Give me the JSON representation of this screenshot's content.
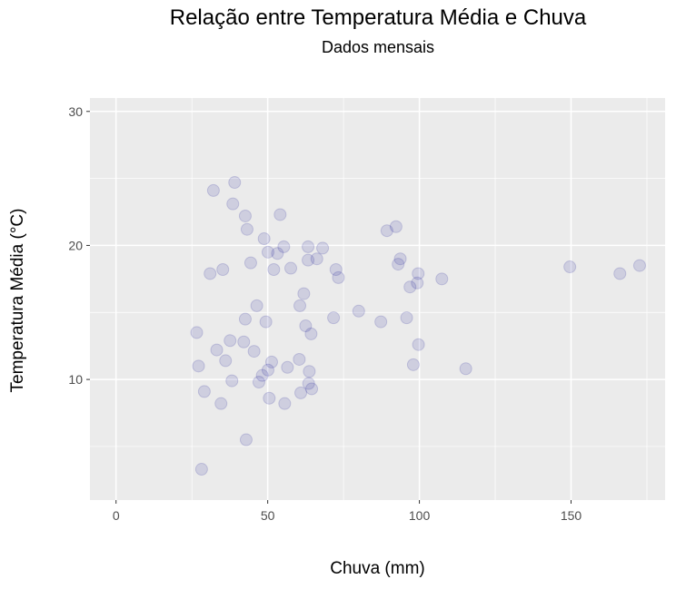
{
  "chart_data": {
    "type": "scatter",
    "title": "Relação entre Temperatura Média e Chuva",
    "subtitle": "Dados mensais",
    "xlabel": "Chuva (mm)",
    "ylabel": "Temperatura Média (°C)",
    "xlim": [
      -8.6,
      181
    ],
    "ylim": [
      1,
      31
    ],
    "x_ticks": [
      0,
      50,
      100,
      150
    ],
    "y_ticks": [
      10,
      20,
      30
    ],
    "grid": true,
    "legend": "none",
    "colors": {
      "point_fill": "#00008b",
      "point_opacity": 0.12,
      "panel_bg": "#ebebeb",
      "grid": "#ffffff"
    },
    "series": [
      {
        "points": [
          [
            149.6,
            18.4
          ],
          [
            166.1,
            17.9
          ],
          [
            172.6,
            18.5
          ],
          [
            115.3,
            10.8
          ],
          [
            107.4,
            17.5
          ],
          [
            99.7,
            12.6
          ],
          [
            99.6,
            17.9
          ],
          [
            99.3,
            17.2
          ],
          [
            98.0,
            11.1
          ],
          [
            96.9,
            16.9
          ],
          [
            95.8,
            14.6
          ],
          [
            93.7,
            19.0
          ],
          [
            93.0,
            18.6
          ],
          [
            92.3,
            21.4
          ],
          [
            89.3,
            21.1
          ],
          [
            87.3,
            14.3
          ],
          [
            80.0,
            15.1
          ],
          [
            73.3,
            17.6
          ],
          [
            72.5,
            18.2
          ],
          [
            71.7,
            14.6
          ],
          [
            68.1,
            19.8
          ],
          [
            66.2,
            19.0
          ],
          [
            64.3,
            13.4
          ],
          [
            63.3,
            18.9
          ],
          [
            63.3,
            19.9
          ],
          [
            63.5,
            9.7
          ],
          [
            64.5,
            9.3
          ],
          [
            63.7,
            10.6
          ],
          [
            62.5,
            14.0
          ],
          [
            61.9,
            16.4
          ],
          [
            60.6,
            15.5
          ],
          [
            60.9,
            9.0
          ],
          [
            60.4,
            11.5
          ],
          [
            57.6,
            18.3
          ],
          [
            56.5,
            10.9
          ],
          [
            55.6,
            8.2
          ],
          [
            55.3,
            19.9
          ],
          [
            54.1,
            22.3
          ],
          [
            53.2,
            19.4
          ],
          [
            52.0,
            18.2
          ],
          [
            51.3,
            11.3
          ],
          [
            50.1,
            19.5
          ],
          [
            50.5,
            8.6
          ],
          [
            50.1,
            10.7
          ],
          [
            49.4,
            14.3
          ],
          [
            48.8,
            20.5
          ],
          [
            48.2,
            10.3
          ],
          [
            47.1,
            9.8
          ],
          [
            46.4,
            15.5
          ],
          [
            45.5,
            12.1
          ],
          [
            44.4,
            18.7
          ],
          [
            43.2,
            21.2
          ],
          [
            42.6,
            22.2
          ],
          [
            42.6,
            14.5
          ],
          [
            42.1,
            12.8
          ],
          [
            42.9,
            5.5
          ],
          [
            39.1,
            24.7
          ],
          [
            38.5,
            23.1
          ],
          [
            38.2,
            9.9
          ],
          [
            37.6,
            12.9
          ],
          [
            36.1,
            11.4
          ],
          [
            35.2,
            18.2
          ],
          [
            34.6,
            8.2
          ],
          [
            33.2,
            12.2
          ],
          [
            32.1,
            24.1
          ],
          [
            31.0,
            17.9
          ],
          [
            29.1,
            9.1
          ],
          [
            28.2,
            3.3
          ],
          [
            27.2,
            11.0
          ],
          [
            26.6,
            13.5
          ]
        ]
      }
    ]
  }
}
